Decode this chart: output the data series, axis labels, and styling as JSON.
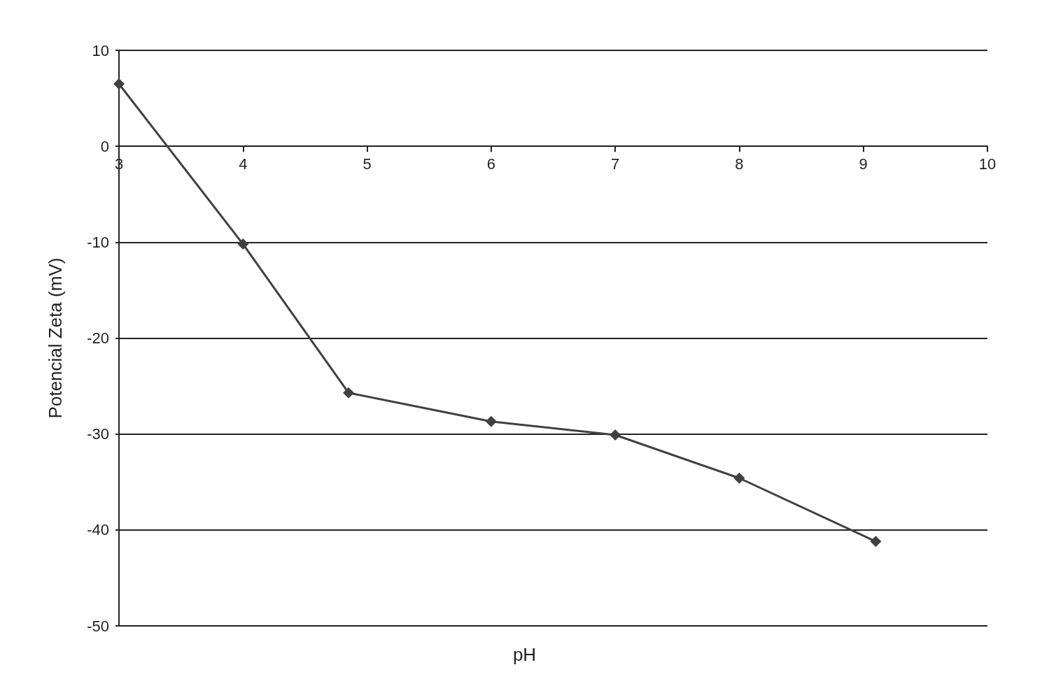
{
  "chart_data": {
    "type": "line",
    "xlabel": "pH",
    "ylabel": "Potencial Zeta (mV)",
    "x": [
      3,
      4,
      4.85,
      6,
      7,
      8,
      9.1
    ],
    "series": [
      {
        "color": "#404040",
        "values": [
          6.5,
          -10.2,
          -25.7,
          -28.7,
          -30.1,
          -34.6,
          -41.2
        ]
      }
    ],
    "xlim": [
      3,
      10
    ],
    "xticks": [
      3,
      4,
      5,
      6,
      7,
      8,
      9,
      10
    ],
    "ylim": [
      -50,
      10
    ],
    "yticks": [
      -50,
      -40,
      -30,
      -20,
      -10,
      0,
      10
    ],
    "grid": "y",
    "marker": "diamond",
    "line_style": "solid"
  }
}
